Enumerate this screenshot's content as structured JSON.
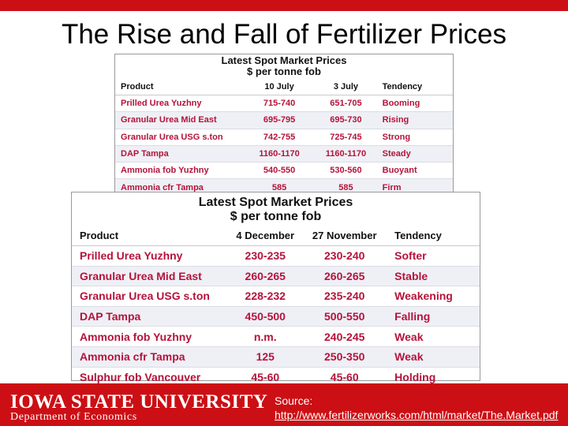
{
  "slide": {
    "title": "The Rise and Fall of Fertilizer Prices",
    "accent_color": "#cc0f14",
    "value_color": "#b5133a"
  },
  "table1": {
    "title_line1": "Latest Spot Market Prices",
    "title_line2": "$ per tonne fob",
    "headers": [
      "Product",
      "10 July",
      "3 July",
      "Tendency"
    ],
    "rows": [
      [
        "Prilled Urea Yuzhny",
        "715-740",
        "651-705",
        "Booming"
      ],
      [
        "Granular Urea Mid East",
        "695-795",
        "695-730",
        "Rising"
      ],
      [
        "Granular Urea USG s.ton",
        "742-755",
        "725-745",
        "Strong"
      ],
      [
        "DAP Tampa",
        "1160-1170",
        "1160-1170",
        "Steady"
      ],
      [
        "Ammonia fob Yuzhny",
        "540-550",
        "530-560",
        "Buoyant"
      ],
      [
        "Ammonia cfr Tampa",
        "585",
        "585",
        "Firm"
      ]
    ]
  },
  "table2": {
    "title_line1": "Latest Spot Market Prices",
    "title_line2": "$ per tonne fob",
    "headers": [
      "Product",
      "4 December",
      "27 November",
      "Tendency"
    ],
    "rows": [
      [
        "Prilled Urea Yuzhny",
        "230-235",
        "230-240",
        "Softer"
      ],
      [
        "Granular Urea Mid East",
        "260-265",
        "260-265",
        "Stable"
      ],
      [
        "Granular Urea USG s.ton",
        "228-232",
        "235-240",
        "Weakening"
      ],
      [
        "DAP Tampa",
        "450-500",
        "500-550",
        "Falling"
      ],
      [
        "Ammonia fob Yuzhny",
        "n.m.",
        "240-245",
        "Weak"
      ],
      [
        "Ammonia cfr Tampa",
        "125",
        "250-350",
        "Weak"
      ],
      [
        "Sulphur fob Vancouver",
        "45-60",
        "45-60",
        "Holding"
      ]
    ]
  },
  "footer": {
    "university": "IOWA STATE UNIVERSITY",
    "department": "Department of Economics",
    "source_prefix": "Source: ",
    "source_link": "http://www.fertilizerworks.com/html/market/The.Market.pdf"
  }
}
